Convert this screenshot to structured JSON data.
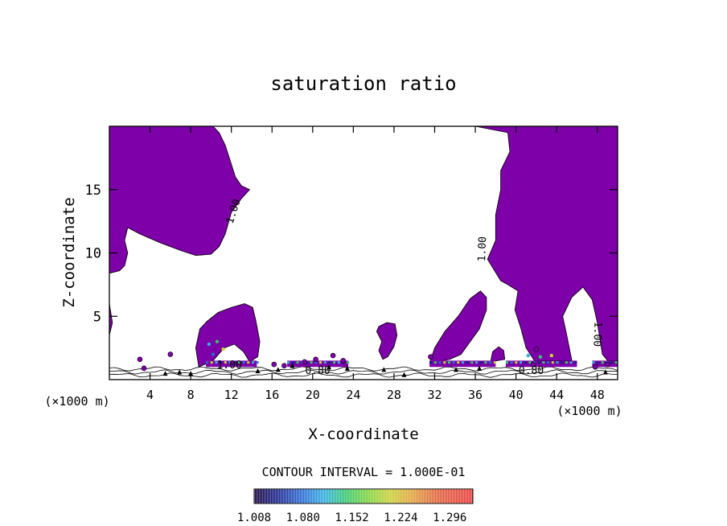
{
  "chart_data": {
    "type": "contour",
    "title": "saturation ratio",
    "xlabel": "X-coordinate",
    "ylabel": "Z-coordinate",
    "x_unit_label": "(×1000 m)",
    "xlim": [
      0,
      50
    ],
    "ylim": [
      0,
      20
    ],
    "x_ticks": [
      4,
      8,
      12,
      16,
      20,
      24,
      28,
      32,
      36,
      40,
      44,
      48
    ],
    "y_ticks": [
      5,
      10,
      15
    ],
    "contour_labels": [
      {
        "x": 12.5,
        "z": 13.2,
        "text": "1.00",
        "rotate": -72
      },
      {
        "x": 37.0,
        "z": 10.3,
        "text": "1.00",
        "rotate": -88
      },
      {
        "x": 47.7,
        "z": 3.6,
        "text": "1.00",
        "rotate": 92
      },
      {
        "x": 11.8,
        "z": 0.9,
        "text": "1.00",
        "rotate": 0
      },
      {
        "x": 20.5,
        "z": 0.45,
        "text": "0.80",
        "rotate": 0
      },
      {
        "x": 41.5,
        "z": 0.45,
        "text": "0.80",
        "rotate": 0
      }
    ],
    "contour_interval_label": "CONTOUR INTERVAL = 1.000E-01",
    "colorbar": {
      "ticks": [
        "1.008",
        "1.080",
        "1.152",
        "1.224",
        "1.296"
      ],
      "min": 1.008,
      "max": 1.33
    },
    "colors": {
      "supersaturated_fill": "#7d00a8",
      "contour_line": "#000000"
    },
    "regions": [
      {
        "name": "upper-left",
        "points": [
          [
            0,
            20
          ],
          [
            10.2,
            20
          ],
          [
            10.8,
            19.5
          ],
          [
            11.4,
            18.5
          ],
          [
            12,
            17
          ],
          [
            12.4,
            16
          ],
          [
            13,
            15.3
          ],
          [
            13.8,
            15
          ],
          [
            13,
            14.3
          ],
          [
            12,
            13.2
          ],
          [
            11.4,
            11.5
          ],
          [
            10.8,
            10.5
          ],
          [
            10,
            9.9
          ],
          [
            8.5,
            9.8
          ],
          [
            7,
            10.2
          ],
          [
            5,
            10.8
          ],
          [
            3,
            11.5
          ],
          [
            1.8,
            12
          ],
          [
            1.5,
            11
          ],
          [
            1.8,
            10
          ],
          [
            1.5,
            9
          ],
          [
            1,
            8.6
          ],
          [
            0,
            8.4
          ],
          [
            0,
            6
          ],
          [
            0.3,
            4.5
          ],
          [
            0,
            3.5
          ]
        ]
      },
      {
        "name": "upper-right",
        "points": [
          [
            26.5,
            20
          ],
          [
            36,
            20
          ],
          [
            39.2,
            19.5
          ],
          [
            39.4,
            18
          ],
          [
            38.5,
            16.5
          ],
          [
            38.5,
            15
          ],
          [
            38,
            13
          ],
          [
            38,
            11
          ],
          [
            37.2,
            9.5
          ],
          [
            38.5,
            7.8
          ],
          [
            39.2,
            7.5
          ],
          [
            40.2,
            7
          ],
          [
            39.9,
            5.5
          ],
          [
            40.5,
            4
          ],
          [
            41,
            2.5
          ],
          [
            41.8,
            1.5
          ],
          [
            43.5,
            1.5
          ],
          [
            45.5,
            1.5
          ],
          [
            45,
            3.5
          ],
          [
            44.6,
            5
          ],
          [
            45.5,
            6.5
          ],
          [
            46.6,
            7.3
          ],
          [
            47.5,
            6.3
          ],
          [
            48,
            4.5
          ],
          [
            48.5,
            2
          ],
          [
            49,
            1.5
          ],
          [
            50,
            1.5
          ],
          [
            50,
            20
          ]
        ]
      },
      {
        "name": "left-low-cloud",
        "points": [
          [
            8.8,
            1
          ],
          [
            8.5,
            2.5
          ],
          [
            8.9,
            4
          ],
          [
            9.6,
            4.6
          ],
          [
            10.7,
            5.3
          ],
          [
            12,
            5.7
          ],
          [
            13.3,
            6
          ],
          [
            14.1,
            5.7
          ],
          [
            14.4,
            4.7
          ],
          [
            14.8,
            3
          ],
          [
            14.6,
            1.8
          ],
          [
            13.8,
            1.4
          ],
          [
            13.2,
            2.2
          ],
          [
            12.3,
            2.8
          ],
          [
            11.3,
            2.5
          ],
          [
            10.2,
            1.5
          ]
        ]
      },
      {
        "name": "mid-thin-cloud",
        "points": [
          [
            26.5,
            4.2
          ],
          [
            27.3,
            4.5
          ],
          [
            28.1,
            4.4
          ],
          [
            28.3,
            3.5
          ],
          [
            28,
            2.6
          ],
          [
            27.4,
            1.8
          ],
          [
            26.9,
            1.6
          ],
          [
            26.5,
            2.3
          ],
          [
            26.8,
            3
          ],
          [
            26.3,
            3.8
          ]
        ]
      },
      {
        "name": "right-low-cloud",
        "points": [
          [
            31.5,
            1.3
          ],
          [
            32,
            2.5
          ],
          [
            33,
            3.8
          ],
          [
            34.3,
            5
          ],
          [
            35.5,
            6.4
          ],
          [
            36.5,
            7
          ],
          [
            37.1,
            6.5
          ],
          [
            37.1,
            5.5
          ],
          [
            36.4,
            4
          ],
          [
            35.5,
            3
          ],
          [
            34.6,
            2
          ],
          [
            33.5,
            1.6
          ]
        ]
      },
      {
        "name": "right-small-cloud",
        "points": [
          [
            37.5,
            1.4
          ],
          [
            37.7,
            2.2
          ],
          [
            38.3,
            2.6
          ],
          [
            38.8,
            2.3
          ],
          [
            38.9,
            1.6
          ]
        ]
      }
    ]
  }
}
